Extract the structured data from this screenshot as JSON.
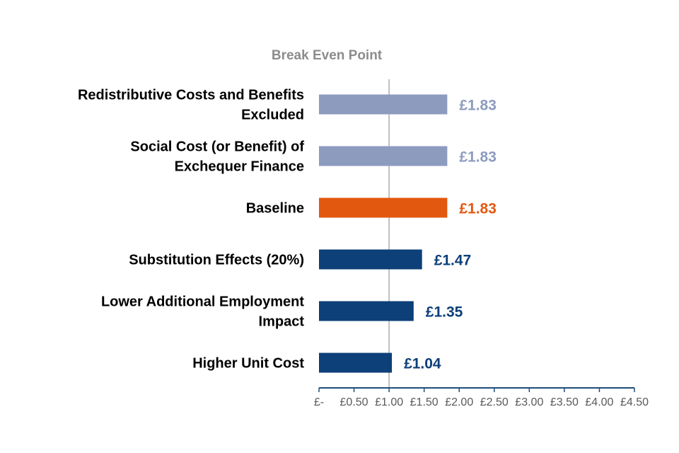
{
  "chart_data": {
    "type": "bar",
    "orientation": "horizontal",
    "title": "",
    "xlabel": "",
    "ylabel": "",
    "categories": [
      [
        "Redistributive Costs and Benefits",
        "Excluded"
      ],
      [
        "Social Cost (or Benefit) of",
        "Exchequer Finance"
      ],
      [
        "Baseline"
      ],
      [
        "Substitution Effects (20%)"
      ],
      [
        "Lower Additional Employment",
        "Impact"
      ],
      [
        "Higher Unit Cost"
      ]
    ],
    "values": [
      1.83,
      1.83,
      1.83,
      1.47,
      1.35,
      1.04
    ],
    "value_labels": [
      "£1.83",
      "£1.83",
      "£1.83",
      "£1.47",
      "£1.35",
      "£1.04"
    ],
    "bar_colors": [
      "#8d9bbf",
      "#8d9bbf",
      "#e2580f",
      "#0d3f78",
      "#0d3f78",
      "#0d3f78"
    ],
    "xlim": [
      0,
      4.5
    ],
    "x_ticks": [
      0,
      0.5,
      1.0,
      1.5,
      2.0,
      2.5,
      3.0,
      3.5,
      4.0,
      4.5
    ],
    "x_tick_labels": [
      "£-",
      "£0.50",
      "£1.00",
      "£1.50",
      "£2.00",
      "£2.50",
      "£3.00",
      "£3.50",
      "£4.00",
      "£4.50"
    ],
    "reference_line": {
      "value": 1.0,
      "label": "Break Even Point",
      "color": "#bfbfbf"
    },
    "grid": false,
    "legend": "none",
    "axis_color": "#1f4e79"
  }
}
